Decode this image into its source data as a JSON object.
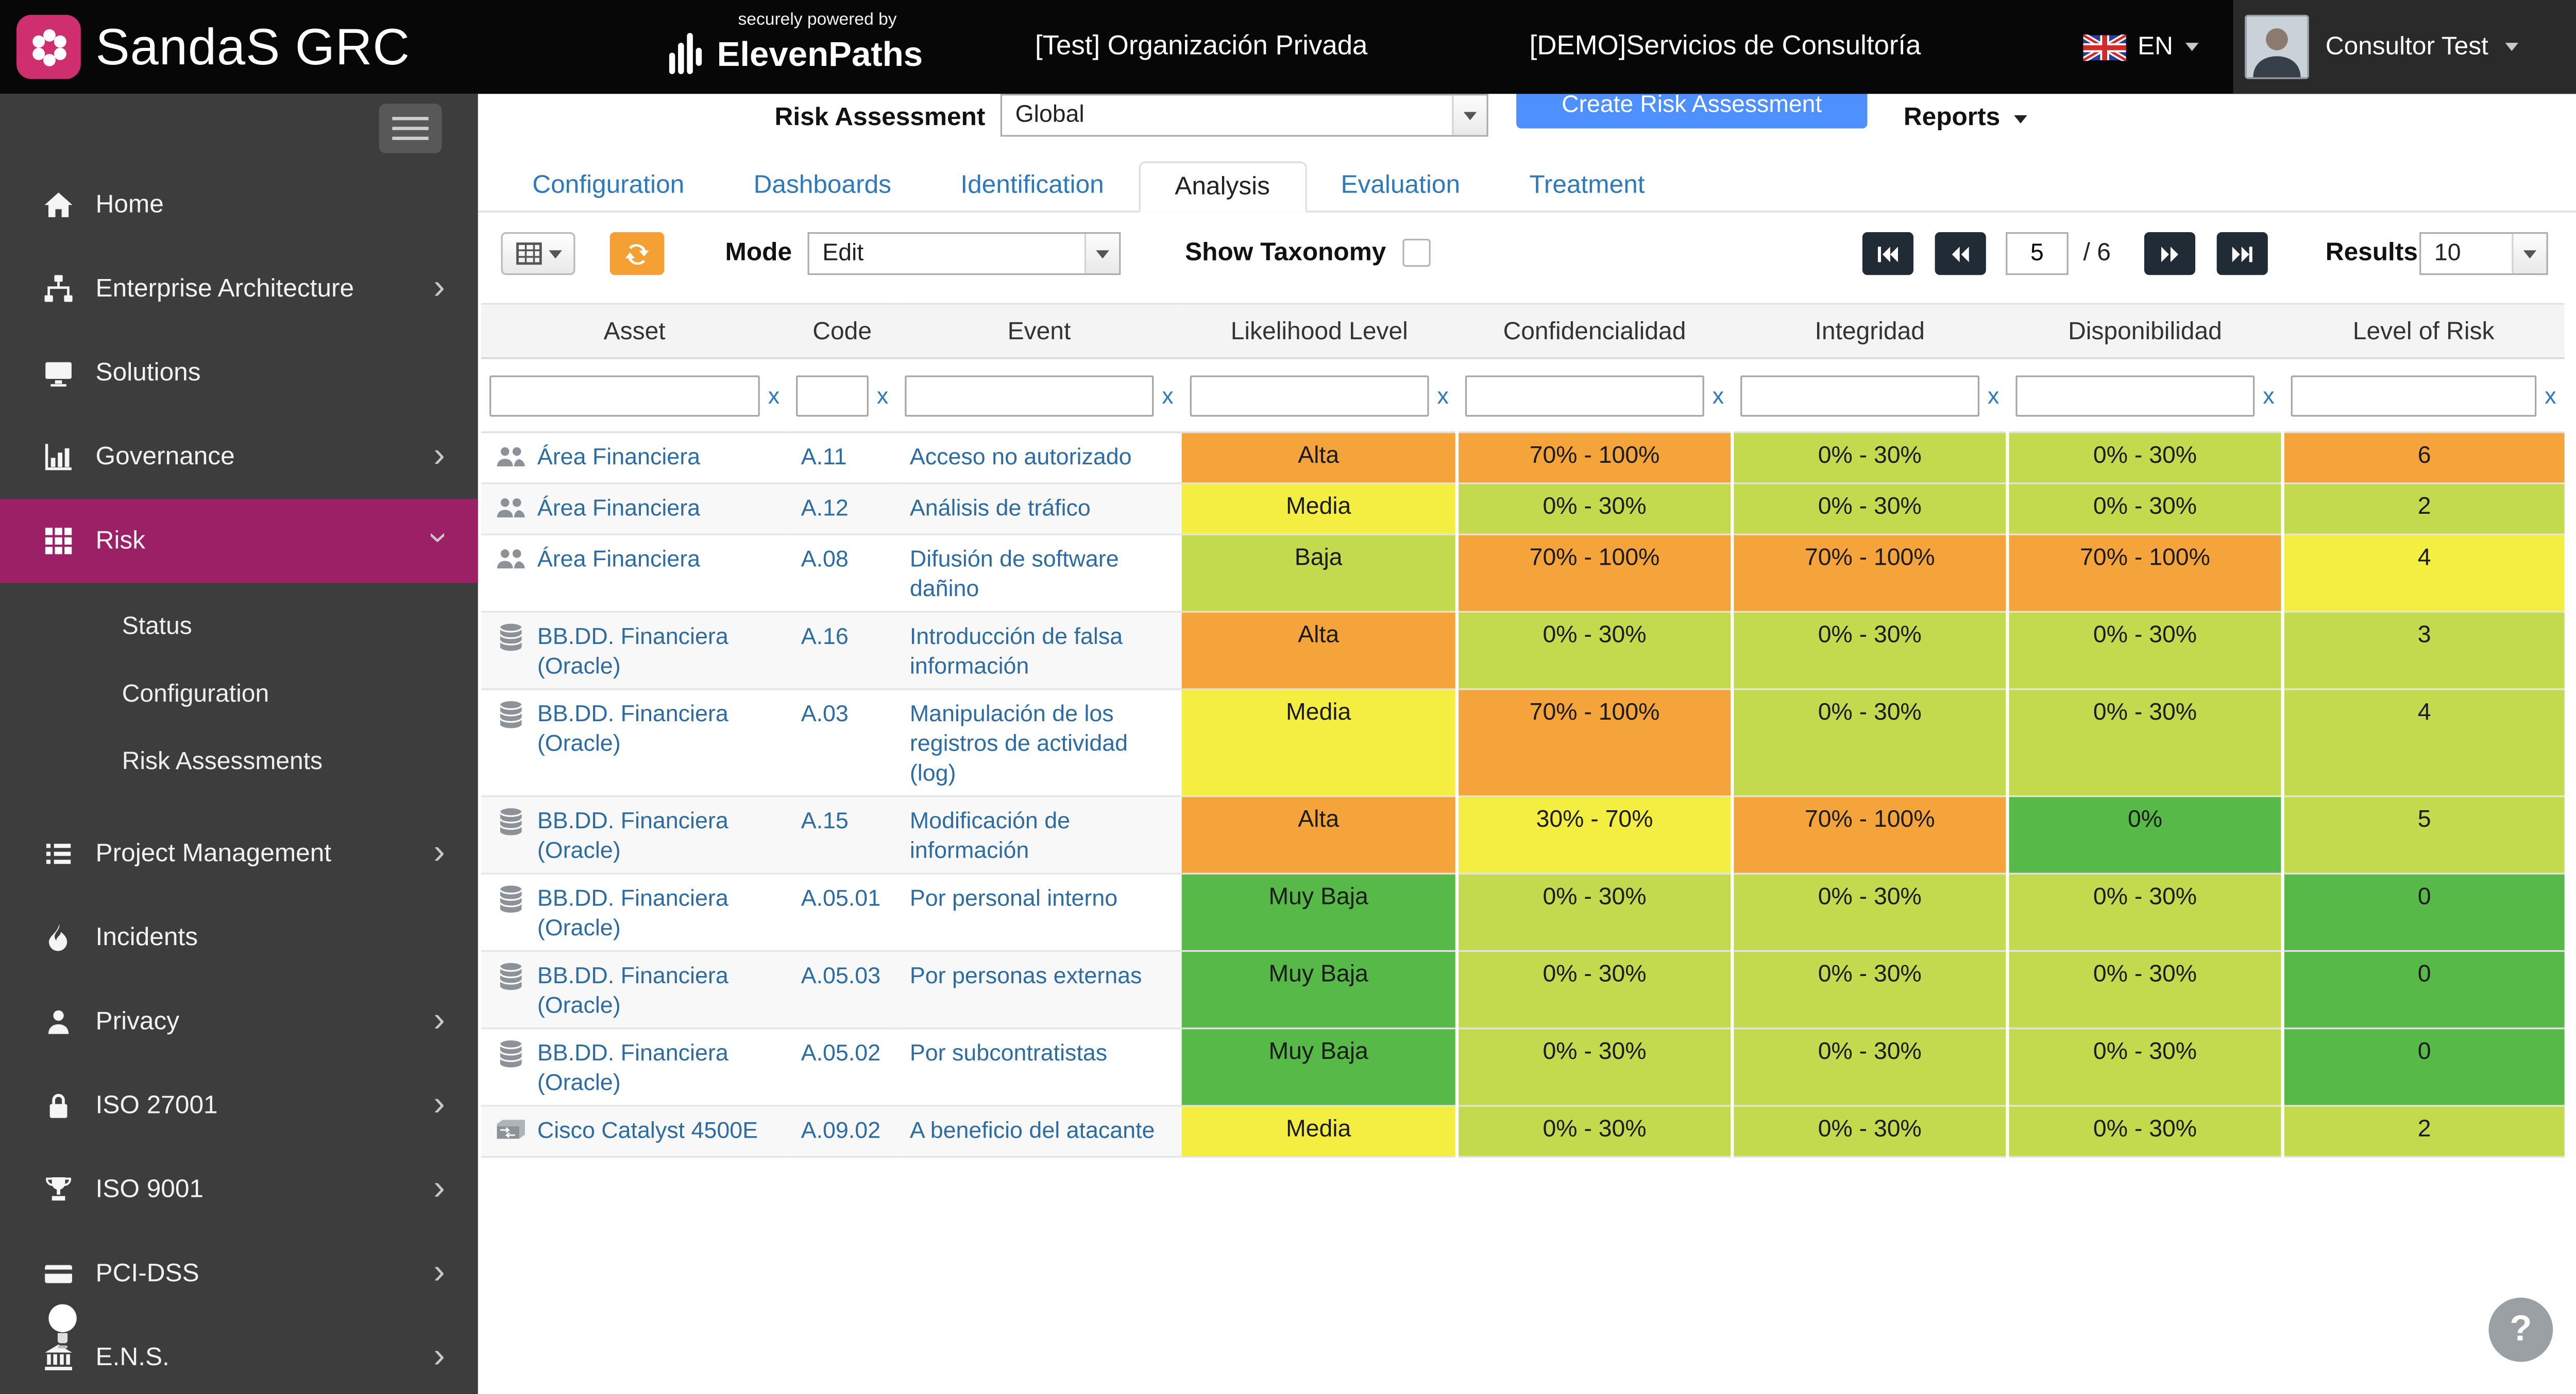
{
  "topbar": {
    "brand": "SandaS GRC",
    "powered_by": "securely powered by",
    "powered_brand": "ElevenPaths",
    "organization": "[Test] Organización Privada",
    "service": "[DEMO]Servicios de Consultoría",
    "language": "EN",
    "user_name": "Consultor Test"
  },
  "sidebar": {
    "items": [
      {
        "label": "Home",
        "icon": "home"
      },
      {
        "label": "Enterprise Architecture",
        "icon": "org",
        "chevron": "right"
      },
      {
        "label": "Solutions",
        "icon": "monitor"
      },
      {
        "label": "Governance",
        "icon": "chart",
        "chevron": "right"
      },
      {
        "label": "Risk",
        "icon": "grid",
        "chevron": "down",
        "active": true,
        "sub": [
          "Status",
          "Configuration",
          "Risk Assessments"
        ]
      },
      {
        "label": "Project Management",
        "icon": "list",
        "chevron": "right"
      },
      {
        "label": "Incidents",
        "icon": "flame"
      },
      {
        "label": "Privacy",
        "icon": "person",
        "chevron": "right"
      },
      {
        "label": "ISO 27001",
        "icon": "lock",
        "chevron": "right"
      },
      {
        "label": "ISO 9001",
        "icon": "trophy",
        "chevron": "right"
      },
      {
        "label": "PCI-DSS",
        "icon": "card",
        "chevron": "right"
      },
      {
        "label": "E.N.S.",
        "icon": "bank",
        "chevron": "right"
      }
    ]
  },
  "controls": {
    "risk_assessment_label": "Risk Assessment",
    "risk_assessment_value": "Global",
    "create_button": "Create Risk Assessment",
    "reports_label": "Reports"
  },
  "tabs": [
    {
      "label": "Configuration"
    },
    {
      "label": "Dashboards"
    },
    {
      "label": "Identification"
    },
    {
      "label": "Analysis",
      "active": true
    },
    {
      "label": "Evaluation"
    },
    {
      "label": "Treatment"
    }
  ],
  "toolbar": {
    "mode_label": "Mode",
    "mode_value": "Edit",
    "taxonomy_label": "Show Taxonomy",
    "page_value": "5",
    "page_total": "/ 6",
    "results_label": "Results",
    "results_value": "10"
  },
  "colors": {
    "orange": "#F5A43C",
    "yellow": "#F4EE42",
    "lime": "#C3DA4E",
    "green": "#57B947"
  },
  "table": {
    "headers": [
      "Asset",
      "Code",
      "Event",
      "Likelihood Level",
      "Confidencialidad",
      "Integridad",
      "Disponibilidad",
      "Level of Risk"
    ],
    "filter_clear": "x",
    "rows": [
      {
        "icon": "area",
        "asset": "Área Financiera",
        "code": "A.11",
        "event": "Acceso no autorizado",
        "likelihood": {
          "text": "Alta",
          "color": "orange"
        },
        "confidencialidad": {
          "text": "70% - 100%",
          "color": "orange"
        },
        "integridad": {
          "text": "0% - 30%",
          "color": "lime"
        },
        "disponibilidad": {
          "text": "0% - 30%",
          "color": "lime"
        },
        "risk": {
          "text": "6",
          "color": "orange"
        }
      },
      {
        "icon": "area",
        "asset": "Área Financiera",
        "code": "A.12",
        "event": "Análisis de tráfico",
        "likelihood": {
          "text": "Media",
          "color": "yellow"
        },
        "confidencialidad": {
          "text": "0% - 30%",
          "color": "lime"
        },
        "integridad": {
          "text": "0% - 30%",
          "color": "lime"
        },
        "disponibilidad": {
          "text": "0% - 30%",
          "color": "lime"
        },
        "risk": {
          "text": "2",
          "color": "lime"
        }
      },
      {
        "icon": "area",
        "asset": "Área Financiera",
        "code": "A.08",
        "event": "Difusión de software dañino",
        "likelihood": {
          "text": "Baja",
          "color": "lime"
        },
        "confidencialidad": {
          "text": "70% - 100%",
          "color": "orange"
        },
        "integridad": {
          "text": "70% - 100%",
          "color": "orange"
        },
        "disponibilidad": {
          "text": "70% - 100%",
          "color": "orange"
        },
        "risk": {
          "text": "4",
          "color": "yellow"
        }
      },
      {
        "icon": "db",
        "asset": "BB.DD. Financiera (Oracle)",
        "code": "A.16",
        "event": "Introducción de falsa información",
        "likelihood": {
          "text": "Alta",
          "color": "orange"
        },
        "confidencialidad": {
          "text": "0% - 30%",
          "color": "lime"
        },
        "integridad": {
          "text": "0% - 30%",
          "color": "lime"
        },
        "disponibilidad": {
          "text": "0% - 30%",
          "color": "lime"
        },
        "risk": {
          "text": "3",
          "color": "lime"
        }
      },
      {
        "icon": "db",
        "asset": "BB.DD. Financiera (Oracle)",
        "code": "A.03",
        "event": "Manipulación de los registros de actividad (log)",
        "likelihood": {
          "text": "Media",
          "color": "yellow"
        },
        "confidencialidad": {
          "text": "70% - 100%",
          "color": "orange"
        },
        "integridad": {
          "text": "0% - 30%",
          "color": "lime"
        },
        "disponibilidad": {
          "text": "0% - 30%",
          "color": "lime"
        },
        "risk": {
          "text": "4",
          "color": "lime"
        }
      },
      {
        "icon": "db",
        "asset": "BB.DD. Financiera (Oracle)",
        "code": "A.15",
        "event": "Modificación de información",
        "likelihood": {
          "text": "Alta",
          "color": "orange"
        },
        "confidencialidad": {
          "text": "30% - 70%",
          "color": "yellow"
        },
        "integridad": {
          "text": "70% - 100%",
          "color": "orange"
        },
        "disponibilidad": {
          "text": "0%",
          "color": "green"
        },
        "risk": {
          "text": "5",
          "color": "lime"
        }
      },
      {
        "icon": "db",
        "asset": "BB.DD. Financiera (Oracle)",
        "code": "A.05.01",
        "event": "Por personal interno",
        "likelihood": {
          "text": "Muy Baja",
          "color": "green"
        },
        "confidencialidad": {
          "text": "0% - 30%",
          "color": "lime"
        },
        "integridad": {
          "text": "0% - 30%",
          "color": "lime"
        },
        "disponibilidad": {
          "text": "0% - 30%",
          "color": "lime"
        },
        "risk": {
          "text": "0",
          "color": "green"
        }
      },
      {
        "icon": "db",
        "asset": "BB.DD. Financiera (Oracle)",
        "code": "A.05.03",
        "event": "Por personas externas",
        "likelihood": {
          "text": "Muy Baja",
          "color": "green"
        },
        "confidencialidad": {
          "text": "0% - 30%",
          "color": "lime"
        },
        "integridad": {
          "text": "0% - 30%",
          "color": "lime"
        },
        "disponibilidad": {
          "text": "0% - 30%",
          "color": "lime"
        },
        "risk": {
          "text": "0",
          "color": "green"
        }
      },
      {
        "icon": "db",
        "asset": "BB.DD. Financiera (Oracle)",
        "code": "A.05.02",
        "event": "Por subcontratistas",
        "likelihood": {
          "text": "Muy Baja",
          "color": "green"
        },
        "confidencialidad": {
          "text": "0% - 30%",
          "color": "lime"
        },
        "integridad": {
          "text": "0% - 30%",
          "color": "lime"
        },
        "disponibilidad": {
          "text": "0% - 30%",
          "color": "lime"
        },
        "risk": {
          "text": "0",
          "color": "green"
        }
      },
      {
        "icon": "switch",
        "asset": "Cisco Catalyst 4500E",
        "code": "A.09.02",
        "event": "A beneficio del atacante",
        "likelihood": {
          "text": "Media",
          "color": "yellow"
        },
        "confidencialidad": {
          "text": "0% - 30%",
          "color": "lime"
        },
        "integridad": {
          "text": "0% - 30%",
          "color": "lime"
        },
        "disponibilidad": {
          "text": "0% - 30%",
          "color": "lime"
        },
        "risk": {
          "text": "2",
          "color": "lime"
        }
      }
    ]
  },
  "help_label": "?"
}
